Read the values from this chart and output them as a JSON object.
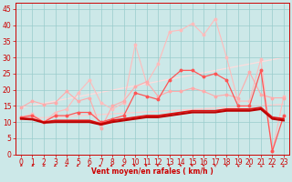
{
  "background_color": "#cce8e8",
  "grid_color": "#99cccc",
  "xlabel": "Vent moyen/en rafales ( km/h )",
  "xlabel_color": "#cc0000",
  "ylabel_yticks": [
    0,
    5,
    10,
    15,
    20,
    25,
    30,
    35,
    40,
    45
  ],
  "xlim": [
    -0.5,
    23.5
  ],
  "ylim": [
    0,
    47
  ],
  "xticks": [
    0,
    1,
    2,
    3,
    4,
    5,
    6,
    7,
    8,
    9,
    10,
    11,
    12,
    13,
    14,
    15,
    16,
    17,
    18,
    19,
    20,
    21,
    22,
    23
  ],
  "line_light1": {
    "x": [
      0,
      1,
      2,
      3,
      4,
      5,
      6,
      7,
      8,
      9,
      10,
      11,
      12,
      13,
      14,
      15,
      16,
      17,
      18,
      19,
      20,
      21,
      22,
      23
    ],
    "y": [
      14.5,
      16.5,
      15.5,
      16.0,
      19.5,
      16.5,
      17.5,
      8.0,
      15.0,
      16.5,
      21.0,
      22.5,
      18.0,
      19.5,
      19.5,
      20.5,
      19.5,
      18.0,
      18.5,
      17.5,
      25.5,
      18.5,
      17.5,
      17.5
    ],
    "color": "#ffaaaa",
    "marker": "o",
    "markersize": 1.8,
    "linewidth": 0.8
  },
  "line_light2": {
    "x": [
      0,
      1,
      2,
      3,
      4,
      5,
      6,
      7,
      8,
      9,
      10,
      11,
      12,
      13,
      14,
      15,
      16,
      17,
      18,
      19,
      20,
      21,
      22,
      23
    ],
    "y": [
      11.5,
      12.5,
      10.0,
      13.0,
      14.0,
      19.0,
      23.0,
      16.0,
      14.0,
      16.0,
      34.0,
      22.0,
      28.0,
      38.0,
      38.5,
      40.5,
      37.0,
      42.0,
      30.0,
      16.5,
      16.5,
      29.5,
      1.0,
      18.0
    ],
    "color": "#ffbbbb",
    "marker": "o",
    "markersize": 1.8,
    "linewidth": 0.8
  },
  "line_med1": {
    "x": [
      0,
      1,
      2,
      3,
      4,
      5,
      6,
      7,
      8,
      9,
      10,
      11,
      12,
      13,
      14,
      15,
      16,
      17,
      18,
      19,
      20,
      21,
      22,
      23
    ],
    "y": [
      11.5,
      12.0,
      10.0,
      12.0,
      12.0,
      13.0,
      13.0,
      10.0,
      11.0,
      12.0,
      19.0,
      18.0,
      17.0,
      23.0,
      26.0,
      26.0,
      24.0,
      25.0,
      23.0,
      15.0,
      15.0,
      26.0,
      1.0,
      12.0
    ],
    "color": "#ff5555",
    "marker": "o",
    "markersize": 1.8,
    "linewidth": 0.9
  },
  "line_dark1": {
    "x": [
      0,
      1,
      2,
      3,
      4,
      5,
      6,
      7,
      8,
      9,
      10,
      11,
      12,
      13,
      14,
      15,
      16,
      17,
      18,
      19,
      20,
      21,
      22,
      23
    ],
    "y": [
      11.2,
      11.0,
      10.0,
      10.5,
      10.5,
      10.5,
      10.5,
      9.5,
      10.5,
      11.0,
      11.5,
      12.0,
      12.0,
      12.5,
      13.0,
      13.5,
      13.5,
      13.5,
      14.0,
      14.0,
      14.0,
      14.5,
      11.5,
      11.0
    ],
    "color": "#dd1111",
    "marker": null,
    "linewidth": 1.3
  },
  "line_dark2": {
    "x": [
      0,
      1,
      2,
      3,
      4,
      5,
      6,
      7,
      8,
      9,
      10,
      11,
      12,
      13,
      14,
      15,
      16,
      17,
      18,
      19,
      20,
      21,
      22,
      23
    ],
    "y": [
      11.0,
      10.8,
      9.8,
      10.0,
      10.0,
      10.0,
      10.0,
      9.2,
      10.0,
      10.5,
      11.0,
      11.5,
      11.5,
      12.0,
      12.5,
      13.0,
      13.0,
      13.0,
      13.5,
      13.5,
      13.5,
      14.0,
      11.0,
      10.5
    ],
    "color": "#bb0000",
    "marker": null,
    "linewidth": 1.5
  },
  "trend1": {
    "x": [
      0,
      23
    ],
    "y": [
      11.0,
      15.5
    ],
    "color": "#ffcccc",
    "linewidth": 0.9
  },
  "trend2": {
    "x": [
      0,
      23
    ],
    "y": [
      14.5,
      30.0
    ],
    "color": "#ffdddd",
    "linewidth": 0.9
  },
  "arrow_angles_deg": [
    200,
    205,
    210,
    215,
    225,
    230,
    245,
    260,
    270,
    280,
    295,
    305,
    315,
    315,
    320,
    320,
    325,
    330,
    330,
    340,
    345,
    350,
    355,
    10
  ],
  "tick_color": "#cc0000",
  "tick_fontsize": 5.5
}
